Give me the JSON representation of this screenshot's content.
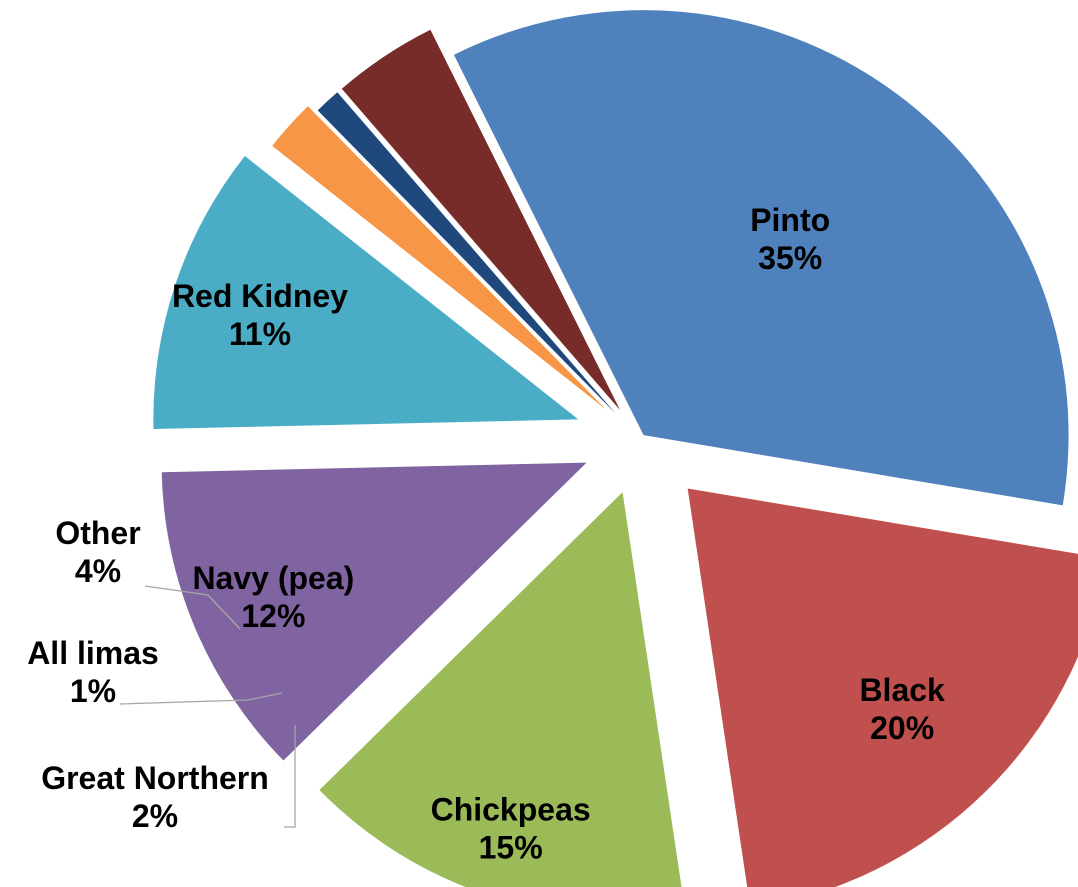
{
  "chart_data": {
    "type": "pie",
    "title": "",
    "exploded": true,
    "slices": [
      {
        "label": "Pinto",
        "value": 35,
        "value_label": "35%",
        "color": "#4F81BD"
      },
      {
        "label": "Black",
        "value": 20,
        "value_label": "20%",
        "color": "#C0504D"
      },
      {
        "label": "Chickpeas",
        "value": 15,
        "value_label": "15%",
        "color": "#9BBB59"
      },
      {
        "label": "Navy (pea)",
        "value": 12,
        "value_label": "12%",
        "color": "#8064A2"
      },
      {
        "label": "Red Kidney",
        "value": 11,
        "value_label": "11%",
        "color": "#4BACC6"
      },
      {
        "label": "Great Northern",
        "value": 2,
        "value_label": "2%",
        "color": "#F79646"
      },
      {
        "label": "All limas",
        "value": 1,
        "value_label": "1%",
        "color": "#1F497D"
      },
      {
        "label": "Other",
        "value": 4,
        "value_label": "4%",
        "color": "#772C2A"
      }
    ]
  }
}
